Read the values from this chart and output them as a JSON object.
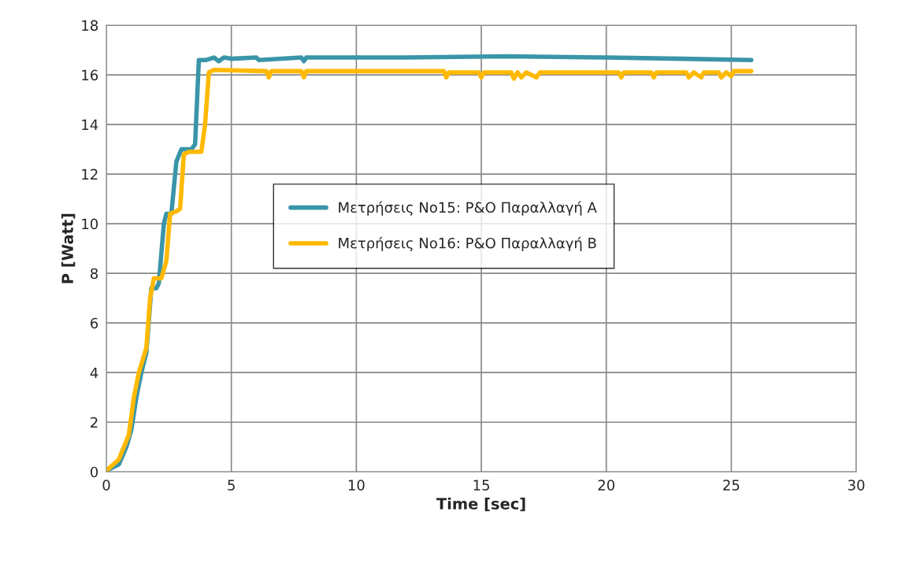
{
  "chart_data": {
    "type": "line",
    "xlabel": "Time [sec]",
    "ylabel": "P [Watt]",
    "xlim": [
      0,
      30
    ],
    "xticks": [
      0,
      5,
      10,
      15,
      20,
      25,
      30
    ],
    "ylim": [
      0,
      18
    ],
    "yticks": [
      0,
      2,
      4,
      6,
      8,
      10,
      12,
      14,
      16,
      18
    ],
    "grid": true,
    "legend": "center",
    "marker": "none",
    "line_style": "solid",
    "series": [
      {
        "name": "Μετρήσεις Νο15: P&O Παραλλαγή Α",
        "color": "#3a95a8",
        "x": [
          0,
          0.5,
          0.8,
          1.0,
          1.2,
          1.4,
          1.6,
          1.8,
          2.0,
          2.1,
          2.3,
          2.4,
          2.6,
          2.8,
          3.0,
          3.4,
          3.55,
          3.7,
          4.0,
          4.3,
          4.5,
          4.7,
          5,
          6.0,
          6.1,
          7.8,
          7.9,
          8.0,
          12,
          16,
          20,
          23,
          25.8
        ],
        "values": [
          0.05,
          0.3,
          1.0,
          1.7,
          3.0,
          4.0,
          4.8,
          7.4,
          7.4,
          7.6,
          10.0,
          10.4,
          10.4,
          12.5,
          13.0,
          13.0,
          13.2,
          16.6,
          16.6,
          16.7,
          16.55,
          16.7,
          16.65,
          16.7,
          16.6,
          16.7,
          16.55,
          16.7,
          16.7,
          16.75,
          16.7,
          16.65,
          16.6
        ]
      },
      {
        "name": "Μετρήσεις Νο16: P&O Παραλλαγή Β",
        "color": "#ffb900",
        "x": [
          0,
          0.5,
          0.9,
          1.1,
          1.3,
          1.6,
          1.75,
          1.9,
          2.2,
          2.4,
          2.55,
          2.8,
          2.95,
          3.1,
          3.3,
          3.8,
          3.95,
          4.1,
          4.3,
          6.4,
          6.5,
          6.6,
          7.8,
          7.9,
          8.0,
          13.5,
          13.6,
          13.7,
          14.9,
          15.0,
          15.1,
          16.2,
          16.3,
          16.45,
          16.6,
          16.8,
          17.2,
          17.35,
          20.5,
          20.6,
          20.7,
          21.8,
          21.9,
          22.0,
          23.2,
          23.3,
          23.5,
          23.8,
          23.9,
          24.5,
          24.6,
          24.8,
          25.0,
          25.1,
          25.8
        ],
        "values": [
          0.05,
          0.5,
          1.5,
          3.0,
          4.0,
          5.0,
          7.0,
          7.8,
          7.8,
          8.5,
          10.4,
          10.5,
          10.6,
          12.8,
          12.9,
          12.9,
          14.0,
          16.1,
          16.2,
          16.15,
          15.9,
          16.15,
          16.15,
          15.9,
          16.15,
          16.15,
          15.9,
          16.1,
          16.1,
          15.9,
          16.1,
          16.1,
          15.85,
          16.1,
          15.9,
          16.1,
          15.9,
          16.1,
          16.1,
          15.9,
          16.1,
          16.1,
          15.9,
          16.1,
          16.1,
          15.9,
          16.1,
          15.9,
          16.1,
          16.1,
          15.9,
          16.1,
          15.95,
          16.15,
          16.15
        ]
      }
    ]
  }
}
